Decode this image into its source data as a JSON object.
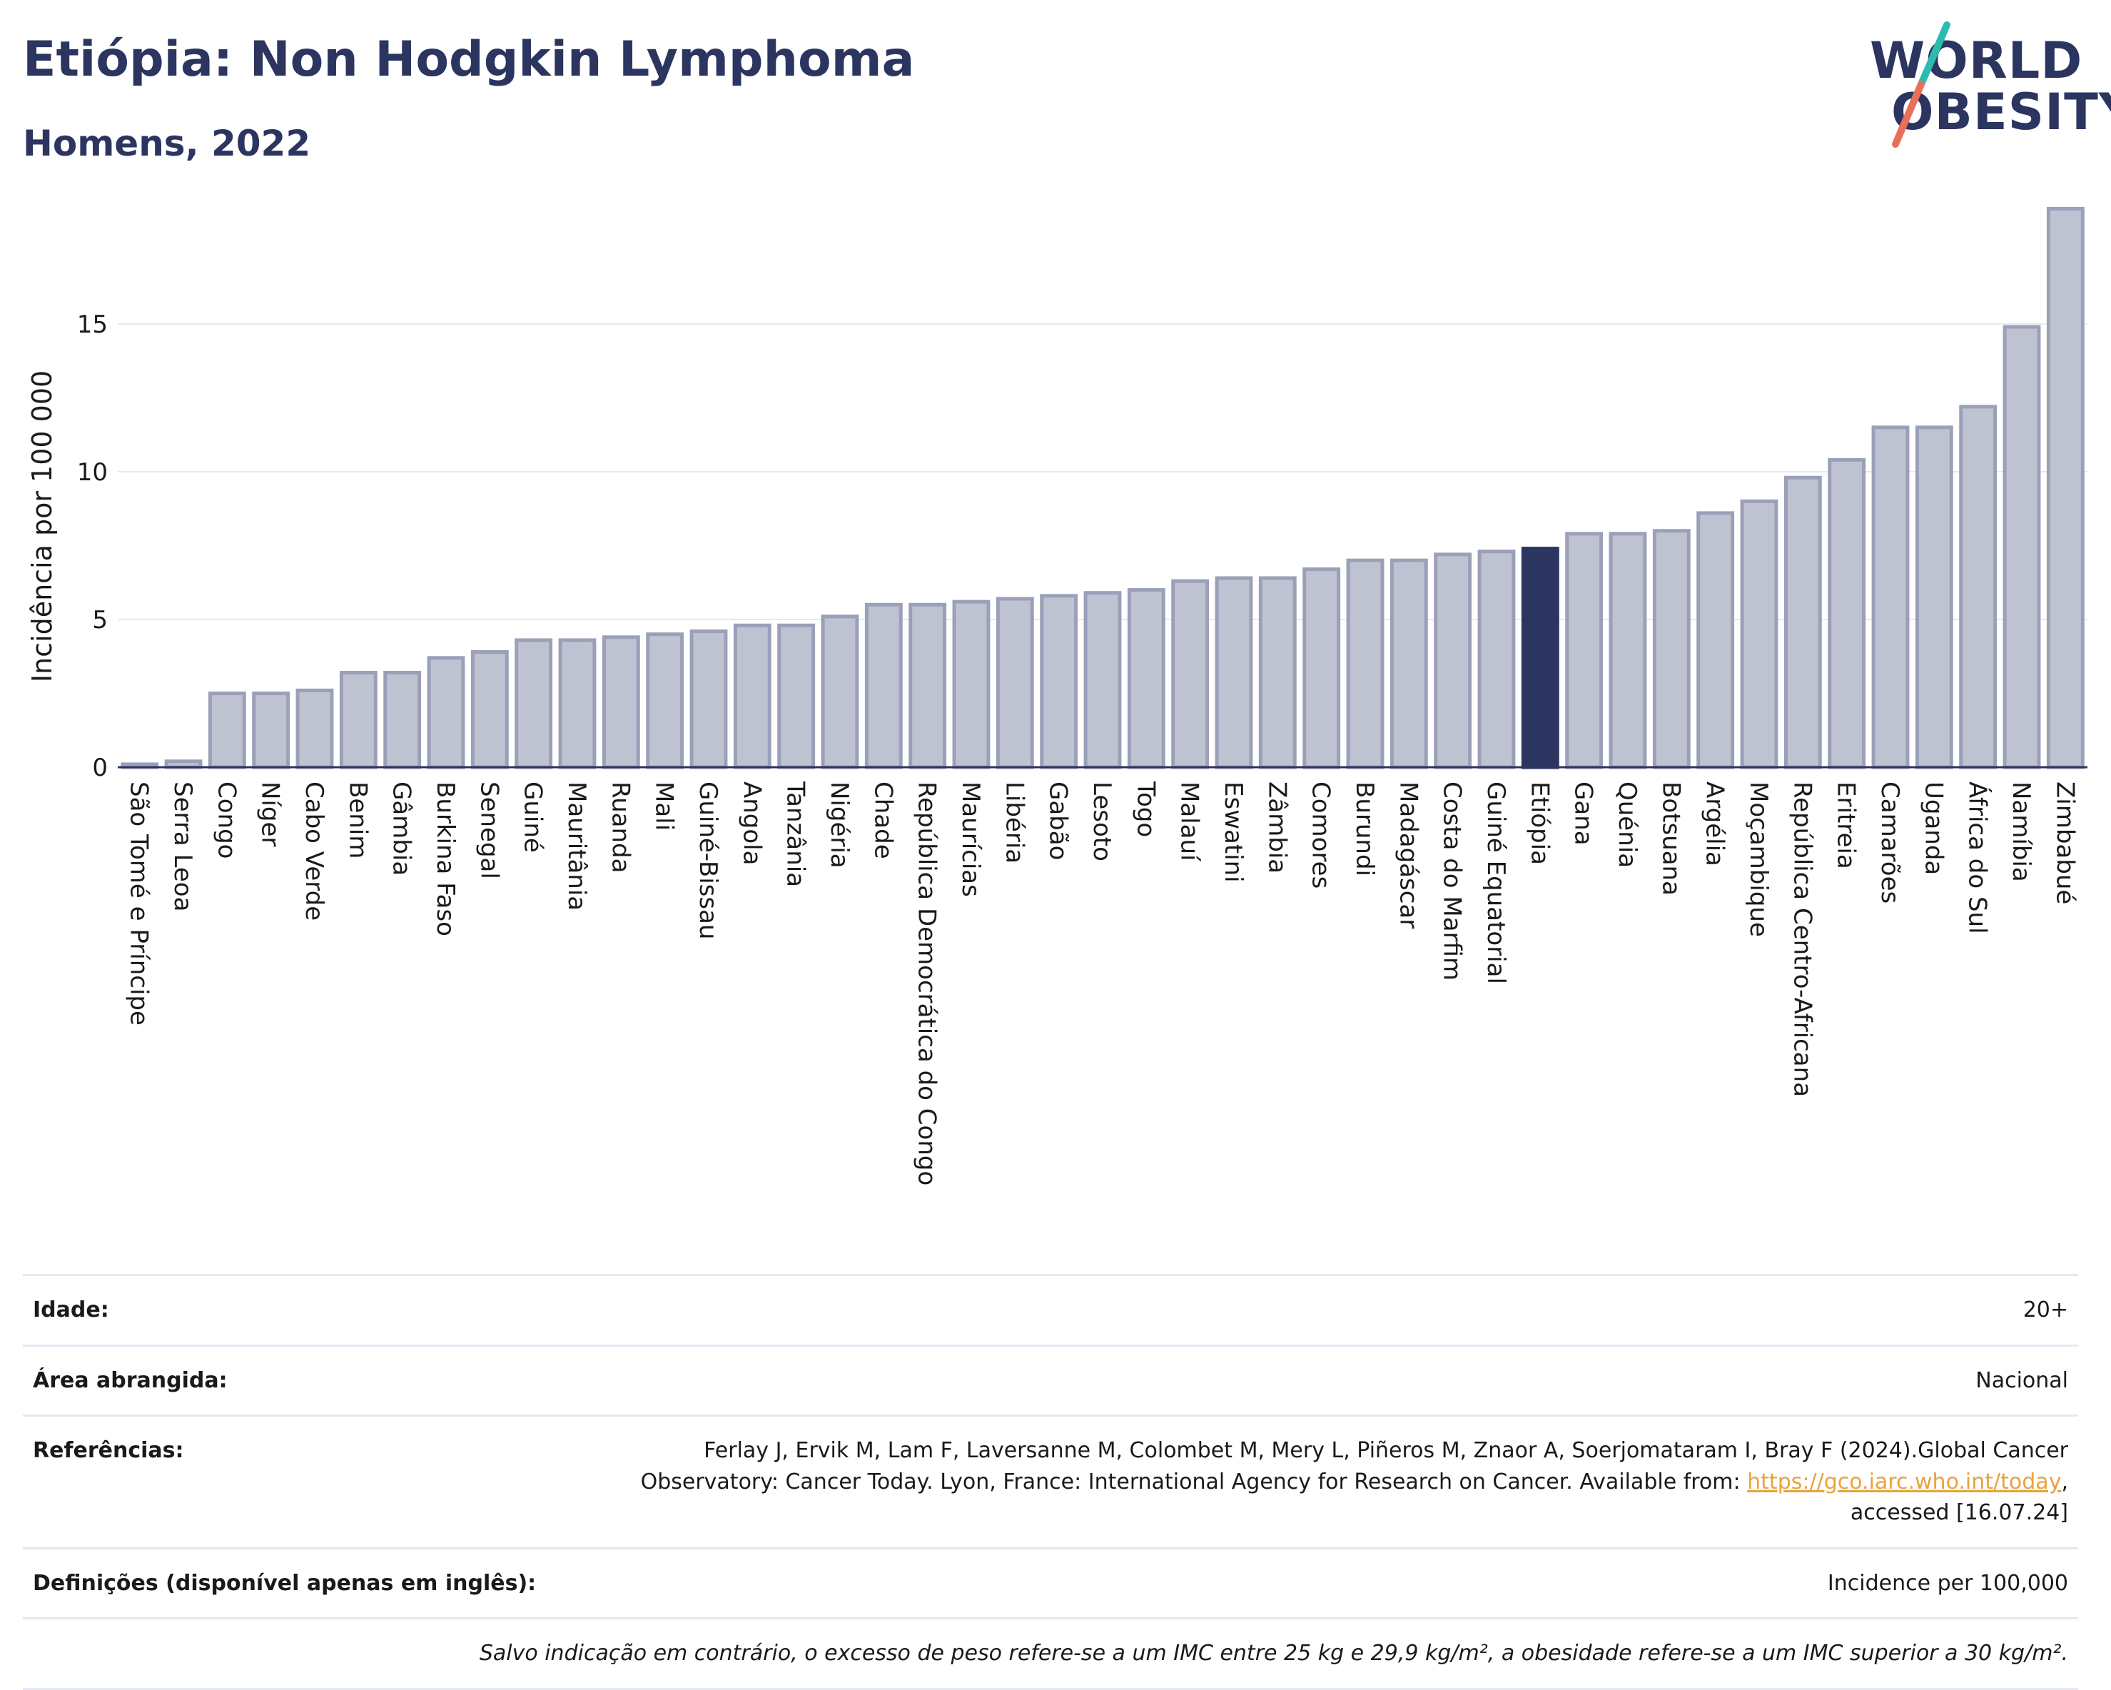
{
  "header": {
    "title": "Etiópia: Non Hodgkin Lymphoma",
    "subtitle": "Homens, 2022"
  },
  "logo": {
    "line1": "WORLD",
    "line2": "OBESITY",
    "colors": {
      "text": "#2c3560",
      "slash_top": "#2bbcb0",
      "slash_bottom": "#e8705a"
    }
  },
  "colors": {
    "bar": "#bfc3d1",
    "bar_border": "#9aa0b8",
    "highlight": "#2c3560",
    "grid": "#e6e8f2",
    "axis": "#2c3560"
  },
  "chart_data": {
    "type": "bar",
    "title": "",
    "xlabel": "",
    "ylabel": "Incidência por 100 000",
    "ylim": [
      0,
      19.2
    ],
    "yticks": [
      0,
      5,
      10,
      15
    ],
    "highlight": "Etiópia",
    "grid": true,
    "categories": [
      "São Tomé e Príncipe",
      "Serra Leoa",
      "Congo",
      "Níger",
      "Cabo Verde",
      "Benim",
      "Gâmbia",
      "Burkina Faso",
      "Senegal",
      "Guiné",
      "Mauritânia",
      "Ruanda",
      "Mali",
      "Guiné-Bissau",
      "Angola",
      "Tanzânia",
      "Nigéria",
      "Chade",
      "República Democrática do Congo",
      "Maurícias",
      "Libéria",
      "Gabão",
      "Lesoto",
      "Togo",
      "Malauí",
      "Eswatini",
      "Zâmbia",
      "Comores",
      "Burundi",
      "Madagáscar",
      "Costa do Marfim",
      "Guiné Equatorial",
      "Etiópia",
      "Gana",
      "Quénia",
      "Botsuana",
      "Argélia",
      "Moçambique",
      "República Centro-Africana",
      "Eritreia",
      "Camarões",
      "Uganda",
      "África do Sul",
      "Namíbia",
      "Zimbabué"
    ],
    "values": [
      0.1,
      0.2,
      2.5,
      2.5,
      2.6,
      3.2,
      3.2,
      3.7,
      3.9,
      4.3,
      4.3,
      4.4,
      4.5,
      4.6,
      4.8,
      4.8,
      5.1,
      5.5,
      5.5,
      5.6,
      5.7,
      5.8,
      5.9,
      6.0,
      6.3,
      6.4,
      6.4,
      6.7,
      7.0,
      7.0,
      7.2,
      7.3,
      7.4,
      7.9,
      7.9,
      8.0,
      8.6,
      9.0,
      9.8,
      10.4,
      11.5,
      11.5,
      12.2,
      14.9,
      18.9
    ]
  },
  "info": {
    "age_label": "Idade:",
    "age_value": "20+",
    "area_label": "Área abrangida:",
    "area_value": "Nacional",
    "ref_label": "Referências:",
    "ref_text_1": "Ferlay J, Ervik M, Lam F, Laversanne M, Colombet M, Mery L, Piñeros M, Znaor A, Soerjomataram I, Bray F (2024).Global Cancer Observatory: Cancer Today. Lyon, France: International Agency for Research on Cancer. Available from: ",
    "ref_link": "https://gco.iarc.who.int/today",
    "ref_text_2": ", accessed [16.07.24]",
    "def_label": "Definições (disponível apenas em inglês):",
    "def_value": "Incidence per 100,000",
    "note": "Salvo indicação em contrário, o excesso de peso refere-se a um IMC entre 25 kg e 29,9 kg/m², a obesidade refere-se a um IMC superior a 30 kg/m²."
  }
}
